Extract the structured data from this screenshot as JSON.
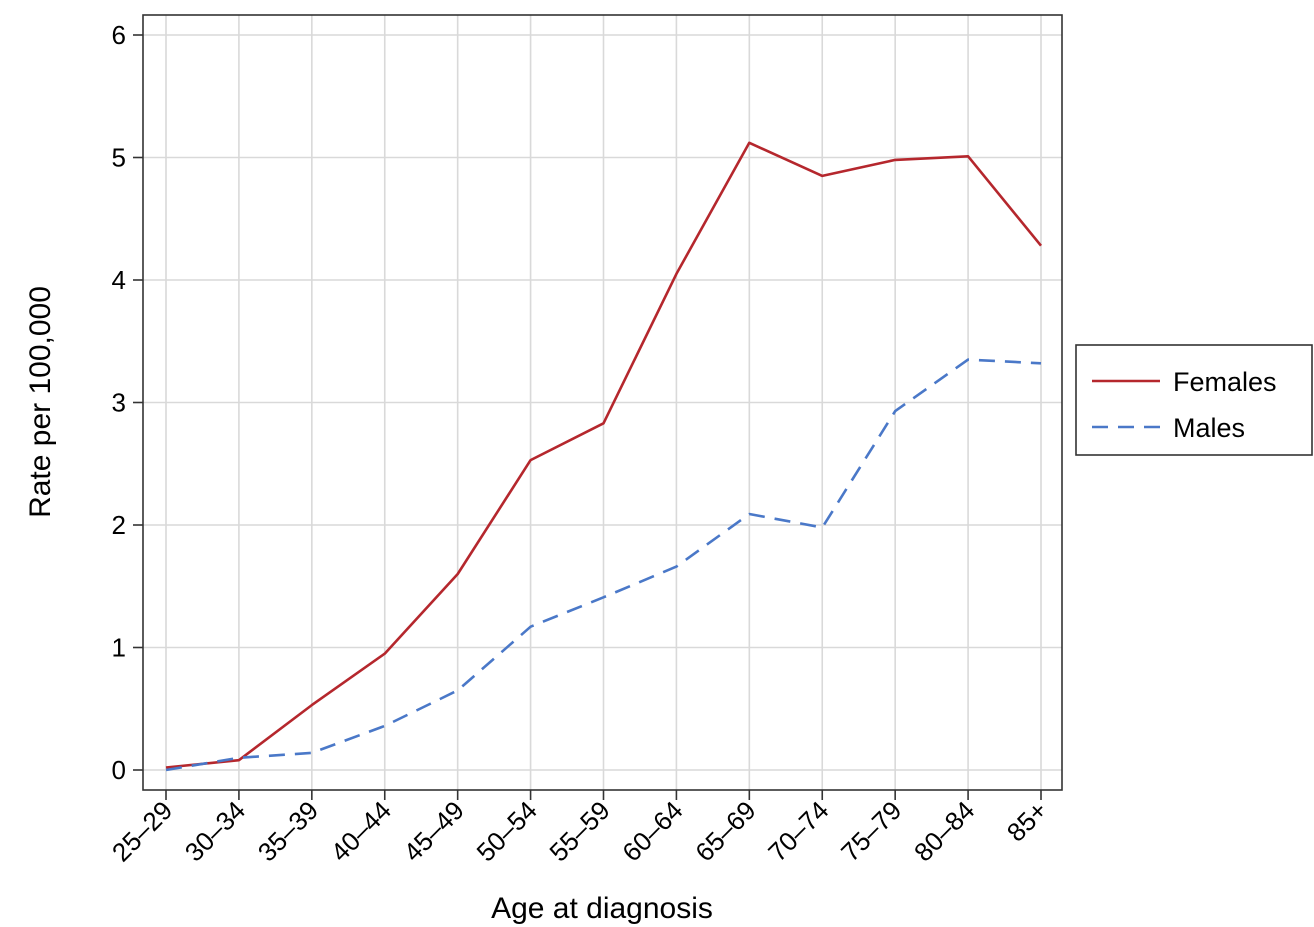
{
  "chart_data": {
    "type": "line",
    "title": "",
    "xlabel": "Age at diagnosis",
    "ylabel": "Rate per 100,000",
    "categories": [
      "25–29",
      "30–34",
      "35–39",
      "40–44",
      "45–49",
      "50–54",
      "55–59",
      "60–64",
      "65–69",
      "70–74",
      "75–79",
      "80–84",
      "85+"
    ],
    "yticks": [
      "0",
      "1",
      "2",
      "3",
      "4",
      "5",
      "6"
    ],
    "ylim": [
      0,
      6
    ],
    "grid": true,
    "legend_position": "right",
    "series": [
      {
        "name": "Females",
        "color": "#b5272d",
        "dash": "solid",
        "values": [
          0.02,
          0.08,
          0.53,
          0.95,
          1.6,
          2.53,
          2.83,
          4.05,
          5.12,
          4.85,
          4.98,
          5.01,
          4.28
        ]
      },
      {
        "name": "Males",
        "color": "#4a78c8",
        "dash": "dashed",
        "values": [
          0.0,
          0.1,
          0.14,
          0.36,
          0.65,
          1.17,
          1.41,
          1.66,
          2.09,
          1.98,
          2.93,
          3.35,
          3.32
        ]
      }
    ]
  }
}
